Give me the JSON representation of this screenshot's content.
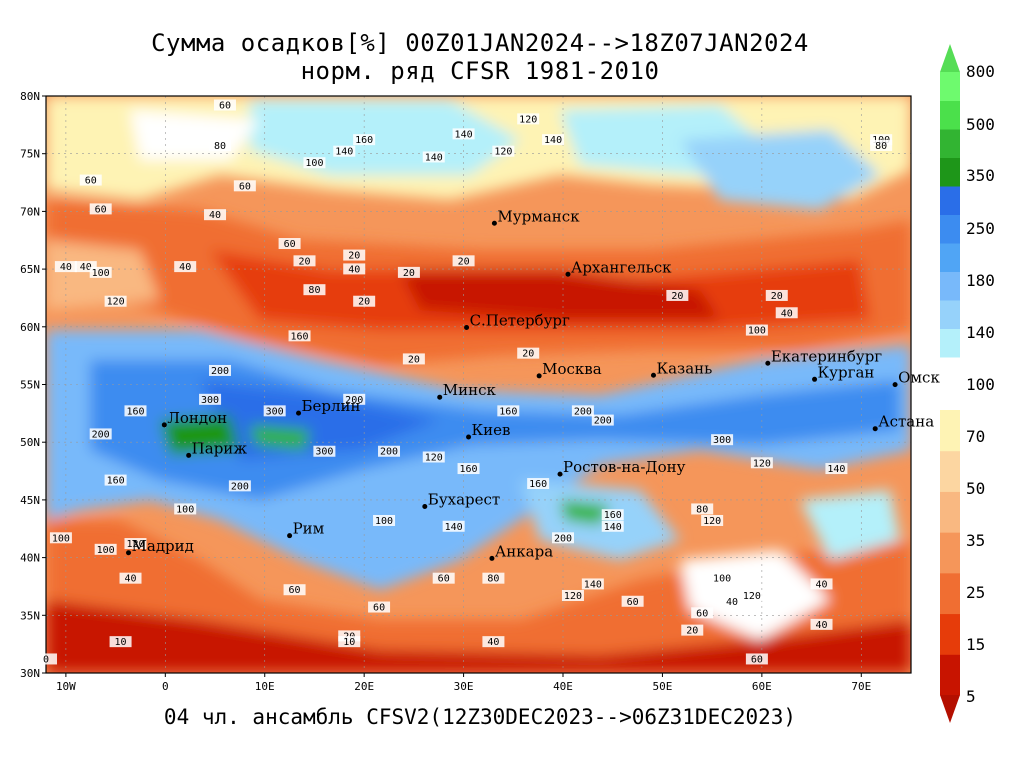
{
  "title": {
    "line1": "Сумма осадков[%] 00Z01JAN2024-->18Z07JAN2024",
    "line2": "норм. ряд CFSR 1981-2010"
  },
  "footer": "04 чл. ансамбль CFSV2(12Z30DEC2023-->06Z31DEC2023)",
  "map": {
    "lon_range": [
      -12,
      75
    ],
    "lat_range": [
      30,
      80
    ],
    "lat_ticks": [
      "30N",
      "35N",
      "40N",
      "45N",
      "50N",
      "55N",
      "60N",
      "65N",
      "70N",
      "75N",
      "80N"
    ],
    "lon_ticks": [
      "10W",
      "0",
      "10E",
      "20E",
      "30E",
      "40E",
      "50E",
      "60E",
      "70E"
    ],
    "cities": [
      {
        "name": "Мурманск",
        "lon": 33.1,
        "lat": 68.97
      },
      {
        "name": "Архангельск",
        "lon": 40.5,
        "lat": 64.55
      },
      {
        "name": "С.Петербург",
        "lon": 30.3,
        "lat": 59.94
      },
      {
        "name": "Москва",
        "lon": 37.6,
        "lat": 55.75
      },
      {
        "name": "Казань",
        "lon": 49.1,
        "lat": 55.8
      },
      {
        "name": "Екатеринбург",
        "lon": 60.6,
        "lat": 56.84
      },
      {
        "name": "Курган",
        "lon": 65.3,
        "lat": 55.45
      },
      {
        "name": "Омск",
        "lon": 73.4,
        "lat": 54.99
      },
      {
        "name": "Астана",
        "lon": 71.4,
        "lat": 51.17
      },
      {
        "name": "Минск",
        "lon": 27.6,
        "lat": 53.9
      },
      {
        "name": "Берлин",
        "lon": 13.4,
        "lat": 52.52
      },
      {
        "name": "Лондон",
        "lon": -0.1,
        "lat": 51.5
      },
      {
        "name": "Париж",
        "lon": 2.35,
        "lat": 48.86
      },
      {
        "name": "Киев",
        "lon": 30.5,
        "lat": 50.45
      },
      {
        "name": "Ростов-на-Дону",
        "lon": 39.7,
        "lat": 47.23
      },
      {
        "name": "Бухарест",
        "lon": 26.1,
        "lat": 44.43
      },
      {
        "name": "Рим",
        "lon": 12.5,
        "lat": 41.9
      },
      {
        "name": "Мадрид",
        "lon": -3.7,
        "lat": 40.42
      },
      {
        "name": "Анкара",
        "lon": 32.85,
        "lat": 39.93
      }
    ],
    "contour_labels": [
      {
        "text": "120",
        "lon": 36.5,
        "lat": 77.8
      },
      {
        "text": "140",
        "lon": 30,
        "lat": 76.5
      },
      {
        "text": "160",
        "lon": 20,
        "lat": 76
      },
      {
        "text": "140",
        "lon": 27,
        "lat": 74.5
      },
      {
        "text": "120",
        "lon": 34,
        "lat": 75
      },
      {
        "text": "140",
        "lon": 39,
        "lat": 76
      },
      {
        "text": "100",
        "lon": 72,
        "lat": 76
      },
      {
        "text": "80",
        "lon": 72,
        "lat": 75.5
      },
      {
        "text": "60",
        "lon": 6,
        "lat": 79
      },
      {
        "text": "80",
        "lon": 5.5,
        "lat": 75.5
      },
      {
        "text": "100",
        "lon": 15,
        "lat": 74
      },
      {
        "text": "140",
        "lon": 18,
        "lat": 75
      },
      {
        "text": "60",
        "lon": -7.5,
        "lat": 72.5
      },
      {
        "text": "60",
        "lon": 8,
        "lat": 72
      },
      {
        "text": "60",
        "lon": -6.5,
        "lat": 70
      },
      {
        "text": "40",
        "lon": -10,
        "lat": 65
      },
      {
        "text": "40",
        "lon": -8,
        "lat": 65
      },
      {
        "text": "100",
        "lon": -6.5,
        "lat": 64.5
      },
      {
        "text": "40",
        "lon": 2,
        "lat": 65
      },
      {
        "text": "40",
        "lon": 5,
        "lat": 69.5
      },
      {
        "text": "60",
        "lon": 12.5,
        "lat": 67
      },
      {
        "text": "20",
        "lon": 14,
        "lat": 65.5
      },
      {
        "text": "80",
        "lon": 15,
        "lat": 63
      },
      {
        "text": "20",
        "lon": 19,
        "lat": 66
      },
      {
        "text": "40",
        "lon": 19,
        "lat": 64.8
      },
      {
        "text": "20",
        "lon": 20,
        "lat": 62
      },
      {
        "text": "20",
        "lon": 24.5,
        "lat": 64.5
      },
      {
        "text": "20",
        "lon": 30,
        "lat": 65.5
      },
      {
        "text": "20",
        "lon": 51.5,
        "lat": 62.5
      },
      {
        "text": "20",
        "lon": 61.5,
        "lat": 62.5
      },
      {
        "text": "40",
        "lon": 62.5,
        "lat": 61
      },
      {
        "text": "100",
        "lon": 59.5,
        "lat": 59.5
      },
      {
        "text": "20",
        "lon": 25,
        "lat": 57
      },
      {
        "text": "20",
        "lon": 36.5,
        "lat": 57.5
      },
      {
        "text": "120",
        "lon": -5,
        "lat": 62
      },
      {
        "text": "160",
        "lon": 13.5,
        "lat": 59
      },
      {
        "text": "200",
        "lon": 5.5,
        "lat": 56
      },
      {
        "text": "300",
        "lon": 4.5,
        "lat": 53.5
      },
      {
        "text": "300",
        "lon": 11,
        "lat": 52.5
      },
      {
        "text": "200",
        "lon": 19,
        "lat": 53.5
      },
      {
        "text": "160",
        "lon": -3,
        "lat": 52.5
      },
      {
        "text": "300",
        "lon": 16,
        "lat": 49
      },
      {
        "text": "200",
        "lon": -6.5,
        "lat": 50.5
      },
      {
        "text": "160",
        "lon": -5,
        "lat": 46.5
      },
      {
        "text": "100",
        "lon": 2,
        "lat": 44
      },
      {
        "text": "200",
        "lon": 7.5,
        "lat": 46
      },
      {
        "text": "200",
        "lon": 22.5,
        "lat": 49
      },
      {
        "text": "160",
        "lon": 30.5,
        "lat": 47.5
      },
      {
        "text": "120",
        "lon": 27,
        "lat": 48.5
      },
      {
        "text": "100",
        "lon": 22,
        "lat": 43
      },
      {
        "text": "140",
        "lon": 29,
        "lat": 42.5
      },
      {
        "text": "160",
        "lon": 37.5,
        "lat": 46.2
      },
      {
        "text": "200",
        "lon": 42,
        "lat": 52.5
      },
      {
        "text": "200",
        "lon": 44,
        "lat": 51.7
      },
      {
        "text": "160",
        "lon": 34.5,
        "lat": 52.5
      },
      {
        "text": "300",
        "lon": 56,
        "lat": 50
      },
      {
        "text": "120",
        "lon": 60,
        "lat": 48
      },
      {
        "text": "140",
        "lon": 67.5,
        "lat": 47.5
      },
      {
        "text": "140",
        "lon": 45,
        "lat": 42.5
      },
      {
        "text": "200",
        "lon": 40,
        "lat": 41.5
      },
      {
        "text": "160",
        "lon": 45,
        "lat": 43.5
      },
      {
        "text": "80",
        "lon": 54,
        "lat": 44
      },
      {
        "text": "120",
        "lon": 55,
        "lat": 43
      },
      {
        "text": "100",
        "lon": 56,
        "lat": 38
      },
      {
        "text": "120",
        "lon": 59,
        "lat": 36.5
      },
      {
        "text": "40",
        "lon": 57,
        "lat": 36
      },
      {
        "text": "140",
        "lon": 43,
        "lat": 37.5
      },
      {
        "text": "120",
        "lon": 41,
        "lat": 36.5
      },
      {
        "text": "60",
        "lon": 47,
        "lat": 36
      },
      {
        "text": "60",
        "lon": 28,
        "lat": 38
      },
      {
        "text": "80",
        "lon": 33,
        "lat": 38
      },
      {
        "text": "60",
        "lon": 13,
        "lat": 37
      },
      {
        "text": "60",
        "lon": 21.5,
        "lat": 35.5
      },
      {
        "text": "20",
        "lon": 18.5,
        "lat": 33
      },
      {
        "text": "10",
        "lon": 18.5,
        "lat": 32.5
      },
      {
        "text": "40",
        "lon": 33,
        "lat": 32.5
      },
      {
        "text": "20",
        "lon": 53,
        "lat": 33.5
      },
      {
        "text": "60",
        "lon": 54,
        "lat": 35
      },
      {
        "text": "60",
        "lon": 59.5,
        "lat": 31
      },
      {
        "text": "40",
        "lon": 66,
        "lat": 34
      },
      {
        "text": "40",
        "lon": 66,
        "lat": 37.5
      },
      {
        "text": "10",
        "lon": -4.5,
        "lat": 32.5
      },
      {
        "text": "40",
        "lon": -3.5,
        "lat": 38
      },
      {
        "text": "100",
        "lon": -10.5,
        "lat": 41.5
      },
      {
        "text": "120",
        "lon": -3,
        "lat": 41
      },
      {
        "text": "100",
        "lon": -6,
        "lat": 40.5
      },
      {
        "text": "0",
        "lon": -12,
        "lat": 31
      }
    ]
  },
  "colorbar": {
    "levels": [
      "5",
      "15",
      "25",
      "35",
      "50",
      "70",
      "100",
      "140",
      "180",
      "250",
      "350",
      "500",
      "800"
    ],
    "colors": [
      "#c81400",
      "#e63c0a",
      "#f06e32",
      "#f5965a",
      "#f9b881",
      "#fcd6a1",
      "#fef3b4",
      "#ffffff",
      "#b4f0fa",
      "#96d2fa",
      "#78b9fa",
      "#50a5f5",
      "#3c8cf0",
      "#2a6ee8",
      "#1e9619",
      "#32b432",
      "#4be04b",
      "#6efa6e"
    ],
    "top_arrow_color": "#55dd55",
    "bottom_arrow_color": "#b40f00"
  }
}
